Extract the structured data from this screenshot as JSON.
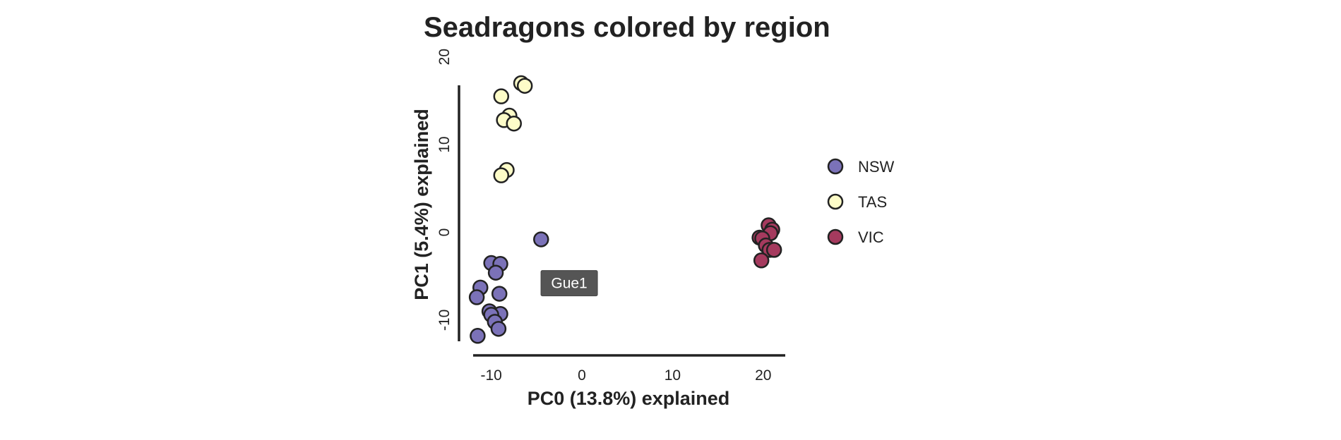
{
  "chart_data": {
    "type": "scatter",
    "title": "Seadragons colored by region",
    "xlabel": "PC0 (13.8%) explained",
    "ylabel": "PC1 (5.4%) explained",
    "xlim": [
      -12,
      21.5
    ],
    "ylim": [
      -12.5,
      17
    ],
    "xticks": [
      -10,
      0,
      10,
      20
    ],
    "yticks": [
      -10,
      0,
      10,
      20
    ],
    "grid": false,
    "legend_position": "right",
    "series": [
      {
        "name": "NSW",
        "color": "#7b72b8",
        "points": [
          {
            "x": -4.5,
            "y": -0.8
          },
          {
            "x": -10.0,
            "y": -3.5
          },
          {
            "x": -9.0,
            "y": -3.6
          },
          {
            "x": -9.5,
            "y": -4.6
          },
          {
            "x": -11.2,
            "y": -6.3
          },
          {
            "x": -11.6,
            "y": -7.4
          },
          {
            "x": -9.1,
            "y": -7.0
          },
          {
            "x": -10.2,
            "y": -9.0
          },
          {
            "x": -9.0,
            "y": -9.3
          },
          {
            "x": -10.0,
            "y": -9.4
          },
          {
            "x": -9.6,
            "y": -10.2
          },
          {
            "x": -9.2,
            "y": -11.0
          },
          {
            "x": -11.5,
            "y": -11.8
          }
        ]
      },
      {
        "name": "TAS",
        "color": "#fdfcc8",
        "points": [
          {
            "x": -6.7,
            "y": 17.0
          },
          {
            "x": -6.3,
            "y": 16.7
          },
          {
            "x": -8.9,
            "y": 15.5
          },
          {
            "x": -8.0,
            "y": 13.3
          },
          {
            "x": -8.6,
            "y": 12.8
          },
          {
            "x": -7.5,
            "y": 12.4
          },
          {
            "x": -8.3,
            "y": 7.1
          },
          {
            "x": -8.9,
            "y": 6.5
          }
        ]
      },
      {
        "name": "VIC",
        "color": "#a53a5e",
        "points": [
          {
            "x": 20.6,
            "y": 0.8
          },
          {
            "x": 21.0,
            "y": 0.3
          },
          {
            "x": 20.8,
            "y": -0.1
          },
          {
            "x": 19.6,
            "y": -0.6
          },
          {
            "x": 19.9,
            "y": -0.7
          },
          {
            "x": 20.3,
            "y": -1.5
          },
          {
            "x": 20.7,
            "y": -2.0
          },
          {
            "x": 21.2,
            "y": -2.0
          },
          {
            "x": 19.8,
            "y": -3.2
          }
        ]
      }
    ],
    "annotations": [
      {
        "text": "Gue1",
        "x": -1.4,
        "y": -5.8
      }
    ]
  }
}
